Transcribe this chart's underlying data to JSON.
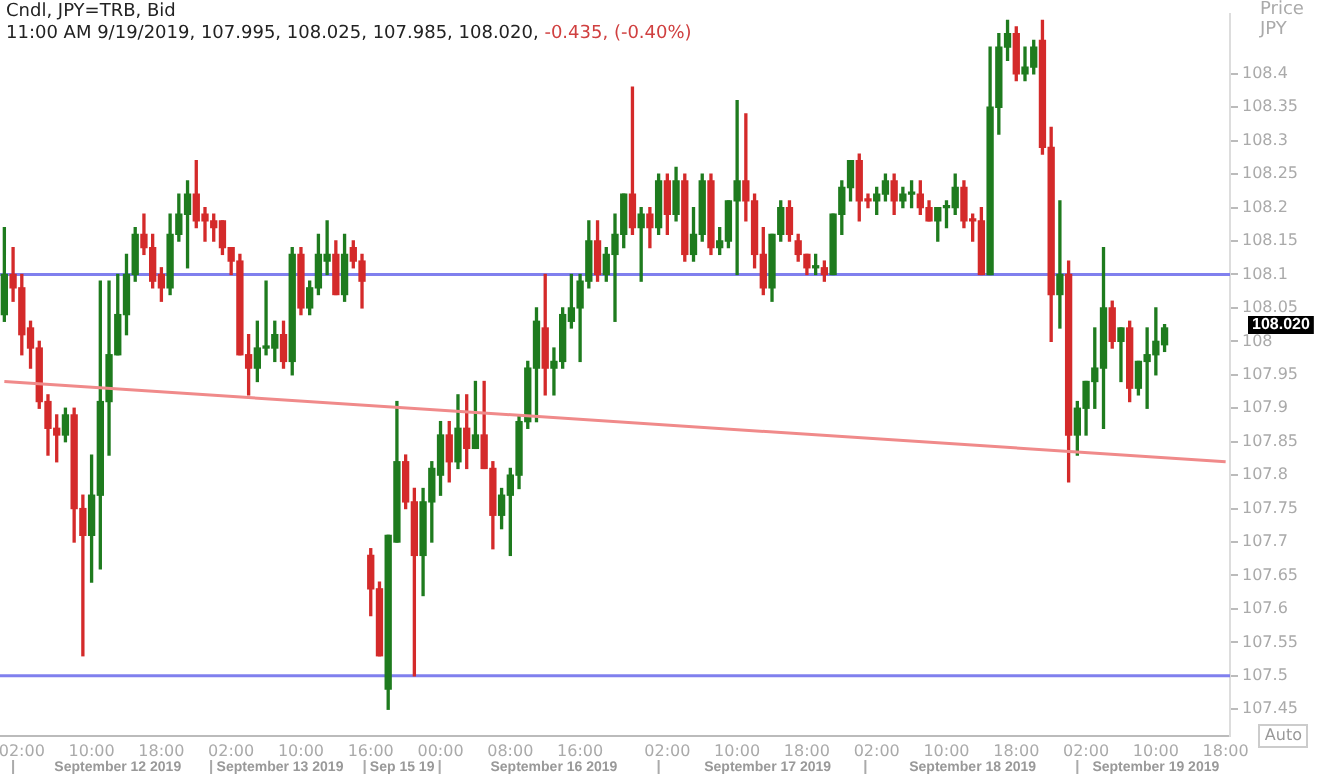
{
  "chart_data": {
    "type": "candlestick",
    "title": "Cndl, JPY=TRB, Bid",
    "subtitle": "11:00 AM 9/19/2019, 107.995, 108.025, 107.985, 108.020, -0.435, (-0.40%)",
    "ylabel": "Price JPY",
    "categories": [
      null,
      null,
      "02:00",
      null,
      null,
      null,
      null,
      null,
      null,
      null,
      "10:00",
      null,
      null,
      null,
      null,
      null,
      null,
      null,
      "18:00",
      null,
      null,
      null,
      null,
      null,
      null,
      null,
      "02:00",
      null,
      null,
      null,
      null,
      null,
      null,
      null,
      "10:00",
      null,
      null,
      null,
      null,
      null,
      null,
      null,
      "16:00",
      null,
      null,
      null,
      null,
      null,
      null,
      null,
      "00:00",
      null,
      null,
      null,
      null,
      null,
      null,
      null,
      "08:00",
      null,
      null,
      null,
      null,
      null,
      null,
      null,
      "16:00",
      null,
      null,
      null,
      null,
      null,
      null,
      null,
      null,
      null,
      "02:00",
      null,
      null,
      null,
      null,
      null,
      null,
      null,
      "10:00",
      null,
      null,
      null,
      null,
      null,
      null,
      null,
      "18:00",
      null,
      null,
      null,
      null,
      null,
      null,
      null,
      "02:00",
      null,
      null,
      null,
      null,
      null,
      null,
      null,
      "10:00",
      null,
      null,
      null,
      null,
      null,
      null,
      null,
      "18:00",
      null,
      null,
      null,
      null,
      null,
      null,
      null,
      "02:00",
      null,
      null,
      null,
      null,
      null,
      null,
      null,
      "10:00",
      null,
      null,
      null,
      null,
      null,
      null,
      null,
      "18:00"
    ],
    "ohlc": [
      [
        108.04,
        108.17,
        108.03,
        108.1
      ],
      [
        108.1,
        108.14,
        108.06,
        108.08
      ],
      [
        108.08,
        108.1,
        107.98,
        108.01
      ],
      [
        108.02,
        108.03,
        107.96,
        107.99
      ],
      [
        107.99,
        108.0,
        107.9,
        107.91
      ],
      [
        107.91,
        107.92,
        107.83,
        107.87
      ],
      [
        107.87,
        107.89,
        107.82,
        107.86
      ],
      [
        107.86,
        107.9,
        107.85,
        107.89
      ],
      [
        107.89,
        107.9,
        107.7,
        107.75
      ],
      [
        107.75,
        107.77,
        107.53,
        107.71
      ],
      [
        107.71,
        107.83,
        107.64,
        107.77
      ],
      [
        107.77,
        108.09,
        107.66,
        107.91
      ],
      [
        107.91,
        108.09,
        107.83,
        107.98
      ],
      [
        107.98,
        108.1,
        107.98,
        108.04
      ],
      [
        108.04,
        108.13,
        108.01,
        108.1
      ],
      [
        108.1,
        108.17,
        108.09,
        108.16
      ],
      [
        108.16,
        108.19,
        108.13,
        108.14
      ],
      [
        108.14,
        108.16,
        108.08,
        108.09
      ],
      [
        108.1,
        108.11,
        108.06,
        108.08
      ],
      [
        108.08,
        108.19,
        108.07,
        108.16
      ],
      [
        108.16,
        108.22,
        108.15,
        108.19
      ],
      [
        108.19,
        108.24,
        108.11,
        108.22
      ],
      [
        108.22,
        108.27,
        108.17,
        108.18
      ],
      [
        108.19,
        108.2,
        108.15,
        108.18
      ],
      [
        108.18,
        108.19,
        108.15,
        108.17
      ],
      [
        108.18,
        108.18,
        108.13,
        108.14
      ],
      [
        108.14,
        108.14,
        108.1,
        108.12
      ],
      [
        108.12,
        108.13,
        107.98,
        107.98
      ],
      [
        107.98,
        108.01,
        107.92,
        107.96
      ],
      [
        107.96,
        108.03,
        107.94,
        107.99
      ],
      [
        107.99,
        108.09,
        107.98,
        107.99
      ],
      [
        107.99,
        108.03,
        107.97,
        108.01
      ],
      [
        108.01,
        108.03,
        107.96,
        107.97
      ],
      [
        107.97,
        108.14,
        107.95,
        108.13
      ],
      [
        108.13,
        108.14,
        108.04,
        108.05
      ],
      [
        108.05,
        108.09,
        108.04,
        108.08
      ],
      [
        108.08,
        108.16,
        108.07,
        108.13
      ],
      [
        108.12,
        108.18,
        108.1,
        108.13
      ],
      [
        108.13,
        108.15,
        108.07,
        108.07
      ],
      [
        108.07,
        108.16,
        108.06,
        108.13
      ],
      [
        108.14,
        108.15,
        108.11,
        108.12
      ],
      [
        108.12,
        108.13,
        108.05,
        108.09
      ],
      [
        107.68,
        107.69,
        107.59,
        107.63
      ],
      [
        107.63,
        107.64,
        107.53,
        107.53
      ],
      [
        107.48,
        107.71,
        107.45,
        107.71
      ],
      [
        107.7,
        107.91,
        107.7,
        107.82
      ],
      [
        107.82,
        107.83,
        107.75,
        107.76
      ],
      [
        107.76,
        107.78,
        107.5,
        107.68
      ],
      [
        107.68,
        107.78,
        107.62,
        107.76
      ],
      [
        107.76,
        107.82,
        107.7,
        107.81
      ],
      [
        107.8,
        107.88,
        107.77,
        107.86
      ],
      [
        107.86,
        107.88,
        107.79,
        107.82
      ],
      [
        107.82,
        107.92,
        107.81,
        107.87
      ],
      [
        107.87,
        107.92,
        107.81,
        107.84
      ],
      [
        107.84,
        107.94,
        107.84,
        107.86
      ],
      [
        107.86,
        107.94,
        107.81,
        107.81
      ],
      [
        107.81,
        107.82,
        107.69,
        107.74
      ],
      [
        107.74,
        107.78,
        107.72,
        107.77
      ],
      [
        107.77,
        107.81,
        107.68,
        107.8
      ],
      [
        107.8,
        107.89,
        107.78,
        107.88
      ],
      [
        107.88,
        107.97,
        107.87,
        107.96
      ],
      [
        107.96,
        108.05,
        107.88,
        108.03
      ],
      [
        108.02,
        108.1,
        107.92,
        107.96
      ],
      [
        107.96,
        107.99,
        107.92,
        107.97
      ],
      [
        107.97,
        108.05,
        107.96,
        108.04
      ],
      [
        108.03,
        108.1,
        108.02,
        108.05
      ],
      [
        108.05,
        108.1,
        107.97,
        108.09
      ],
      [
        108.09,
        108.18,
        108.08,
        108.15
      ],
      [
        108.15,
        108.18,
        108.09,
        108.1
      ],
      [
        108.1,
        108.14,
        108.09,
        108.13
      ],
      [
        108.13,
        108.19,
        108.03,
        108.16
      ],
      [
        108.16,
        108.22,
        108.14,
        108.22
      ],
      [
        108.22,
        108.38,
        108.16,
        108.17
      ],
      [
        108.17,
        108.2,
        108.09,
        108.19
      ],
      [
        108.19,
        108.2,
        108.14,
        108.17
      ],
      [
        108.17,
        108.25,
        108.16,
        108.24
      ],
      [
        108.24,
        108.25,
        108.16,
        108.19
      ],
      [
        108.19,
        108.26,
        108.18,
        108.24
      ],
      [
        108.24,
        108.25,
        108.12,
        108.13
      ],
      [
        108.13,
        108.2,
        108.12,
        108.16
      ],
      [
        108.16,
        108.25,
        108.15,
        108.24
      ],
      [
        108.24,
        108.25,
        108.13,
        108.14
      ],
      [
        108.14,
        108.17,
        108.13,
        108.15
      ],
      [
        108.15,
        108.21,
        108.14,
        108.21
      ],
      [
        108.21,
        108.36,
        108.1,
        108.24
      ],
      [
        108.24,
        108.34,
        108.18,
        108.21
      ],
      [
        108.21,
        108.22,
        108.11,
        108.13
      ],
      [
        108.13,
        108.17,
        108.07,
        108.08
      ],
      [
        108.08,
        108.16,
        108.06,
        108.16
      ],
      [
        108.16,
        108.21,
        108.15,
        108.2
      ],
      [
        108.2,
        108.21,
        108.15,
        108.16
      ],
      [
        108.15,
        108.16,
        108.12,
        108.13
      ],
      [
        108.13,
        108.13,
        108.1,
        108.11
      ],
      [
        108.11,
        108.13,
        108.1,
        108.11
      ],
      [
        108.11,
        108.12,
        108.09,
        108.1
      ],
      [
        108.1,
        108.19,
        108.1,
        108.19
      ],
      [
        108.19,
        108.24,
        108.16,
        108.23
      ],
      [
        108.23,
        108.27,
        108.21,
        108.27
      ],
      [
        108.27,
        108.28,
        108.18,
        108.21
      ],
      [
        108.21,
        108.22,
        108.2,
        108.21
      ],
      [
        108.21,
        108.23,
        108.19,
        108.22
      ],
      [
        108.22,
        108.25,
        108.21,
        108.24
      ],
      [
        108.24,
        108.25,
        108.19,
        108.21
      ],
      [
        108.21,
        108.23,
        108.2,
        108.22
      ],
      [
        108.22,
        108.24,
        108.2,
        108.22
      ],
      [
        108.22,
        108.24,
        108.19,
        108.2
      ],
      [
        108.2,
        108.21,
        108.18,
        108.18
      ],
      [
        108.18,
        108.2,
        108.15,
        108.2
      ],
      [
        108.2,
        108.21,
        108.17,
        108.2
      ],
      [
        108.2,
        108.25,
        108.19,
        108.23
      ],
      [
        108.23,
        108.24,
        108.17,
        108.18
      ],
      [
        108.18,
        108.19,
        108.15,
        108.18
      ],
      [
        108.18,
        108.2,
        108.1,
        108.1
      ],
      [
        108.1,
        108.44,
        108.1,
        108.35
      ],
      [
        108.35,
        108.46,
        108.31,
        108.44
      ],
      [
        108.44,
        108.48,
        108.42,
        108.46
      ],
      [
        108.46,
        108.47,
        108.39,
        108.4
      ],
      [
        108.4,
        108.44,
        108.39,
        108.41
      ],
      [
        108.41,
        108.45,
        108.4,
        108.44
      ],
      [
        108.45,
        108.48,
        108.28,
        108.29
      ],
      [
        108.29,
        108.32,
        108.0,
        108.07
      ],
      [
        108.07,
        108.21,
        108.02,
        108.1
      ],
      [
        108.1,
        108.12,
        107.79,
        107.86
      ],
      [
        107.86,
        107.91,
        107.83,
        107.9
      ],
      [
        107.9,
        107.94,
        107.86,
        107.94
      ],
      [
        107.94,
        108.02,
        107.9,
        107.96
      ],
      [
        107.96,
        108.14,
        107.87,
        108.05
      ],
      [
        108.05,
        108.06,
        107.99,
        108.0
      ],
      [
        108.0,
        108.02,
        107.94,
        108.02
      ],
      [
        108.02,
        108.03,
        107.91,
        107.93
      ],
      [
        107.93,
        107.97,
        107.92,
        107.97
      ],
      [
        107.97,
        108.02,
        107.9,
        107.98
      ],
      [
        107.98,
        108.05,
        107.95,
        108.0
      ],
      [
        107.995,
        108.025,
        107.985,
        108.02
      ],
      null,
      null,
      null,
      null,
      null,
      null,
      null
    ],
    "colors": [
      "#1e7b1e",
      "#d42a2a",
      "#d42a2a",
      "#d42a2a",
      "#d42a2a",
      "#d42a2a",
      "#d42a2a",
      "#1e7b1e",
      "#d42a2a",
      "#d42a2a",
      "#1e7b1e",
      "#1e7b1e",
      "#1e7b1e",
      "#1e7b1e",
      "#1e7b1e",
      "#1e7b1e",
      "#d42a2a",
      "#d42a2a",
      "#d42a2a",
      "#1e7b1e",
      "#1e7b1e",
      "#1e7b1e",
      "#d42a2a",
      "#d42a2a",
      "#d42a2a",
      "#d42a2a",
      "#d42a2a",
      "#d42a2a",
      "#d42a2a",
      "#1e7b1e",
      "#1e7b1e",
      "#1e7b1e",
      "#d42a2a",
      "#1e7b1e",
      "#d42a2a",
      "#1e7b1e",
      "#1e7b1e",
      "#1e7b1e",
      "#d42a2a",
      "#1e7b1e",
      "#d42a2a",
      "#d42a2a",
      "#d42a2a",
      "#d42a2a",
      "#1e7b1e",
      "#1e7b1e",
      "#d42a2a",
      "#d42a2a",
      "#1e7b1e",
      "#1e7b1e",
      "#1e7b1e",
      "#d42a2a",
      "#1e7b1e",
      "#d42a2a",
      "#1e7b1e",
      "#d42a2a",
      "#d42a2a",
      "#1e7b1e",
      "#1e7b1e",
      "#1e7b1e",
      "#1e7b1e",
      "#1e7b1e",
      "#d42a2a",
      "#1e7b1e",
      "#1e7b1e",
      "#1e7b1e",
      "#1e7b1e",
      "#1e7b1e",
      "#d42a2a",
      "#1e7b1e",
      "#1e7b1e",
      "#1e7b1e",
      "#d42a2a",
      "#1e7b1e",
      "#d42a2a",
      "#1e7b1e",
      "#d42a2a",
      "#1e7b1e",
      "#d42a2a",
      "#1e7b1e",
      "#1e7b1e",
      "#d42a2a",
      "#1e7b1e",
      "#1e7b1e",
      "#1e7b1e",
      "#d42a2a",
      "#d42a2a",
      "#d42a2a",
      "#1e7b1e",
      "#1e7b1e",
      "#d42a2a",
      "#d42a2a",
      "#d42a2a",
      "#1e7b1e",
      "#d42a2a",
      "#1e7b1e",
      "#1e7b1e",
      "#1e7b1e",
      "#d42a2a",
      "#d42a2a",
      "#1e7b1e",
      "#1e7b1e",
      "#d42a2a",
      "#1e7b1e",
      "#1e7b1e",
      "#d42a2a",
      "#d42a2a",
      "#1e7b1e",
      "#1e7b1e",
      "#1e7b1e",
      "#d42a2a",
      "#d42a2a",
      "#d42a2a",
      "#1e7b1e",
      "#1e7b1e",
      "#1e7b1e",
      "#d42a2a",
      "#1e7b1e",
      "#1e7b1e",
      "#d42a2a",
      "#d42a2a",
      "#1e7b1e",
      "#d42a2a",
      "#1e7b1e",
      "#1e7b1e",
      "#1e7b1e",
      "#1e7b1e",
      "#d42a2a",
      "#1e7b1e",
      "#d42a2a",
      "#1e7b1e",
      "#1e7b1e",
      "#1e7b1e",
      "#1e7b1e",
      null,
      null,
      null,
      null,
      null,
      null,
      null
    ],
    "series": [
      {
        "type": "line",
        "color": "#f08a8a",
        "values": [
          107.94,
          null,
          null,
          null,
          null,
          null,
          null,
          null,
          null,
          null,
          null,
          null,
          null,
          null,
          null,
          null,
          null,
          null,
          null,
          null,
          null,
          null,
          null,
          null,
          null,
          null,
          null,
          null,
          null,
          null,
          null,
          null,
          null,
          null,
          null,
          null,
          null,
          null,
          null,
          null,
          null,
          null,
          null,
          null,
          null,
          null,
          null,
          null,
          null,
          null,
          null,
          null,
          null,
          null,
          null,
          null,
          null,
          null,
          null,
          null,
          null,
          null,
          null,
          null,
          null,
          null,
          null,
          null,
          null,
          null,
          null,
          null,
          null,
          null,
          null,
          null,
          null,
          null,
          null,
          null,
          null,
          null,
          null,
          null,
          null,
          null,
          null,
          null,
          null,
          null,
          null,
          null,
          null,
          null,
          null,
          null,
          null,
          null,
          null,
          null,
          null,
          null,
          null,
          null,
          null,
          null,
          null,
          null,
          null,
          null,
          null,
          null,
          null,
          null,
          null,
          null,
          null,
          null,
          null,
          null,
          null,
          null,
          null,
          null,
          null,
          null,
          null,
          null,
          null,
          null,
          null,
          null,
          null,
          null,
          null,
          null,
          null,
          null,
          null,
          null,
          107.82
        ]
      }
    ],
    "ylim": [
      107.41,
      108.49
    ],
    "yticks": [
      107.45,
      107.5,
      107.55,
      107.6,
      107.65,
      107.7,
      107.75,
      107.8,
      107.85,
      107.9,
      107.95,
      108,
      108.05,
      108.1,
      108.15,
      108.2,
      108.25,
      108.3,
      108.35,
      108.4
    ],
    "ref_lines": [
      {
        "axis": "y",
        "value": 108.1,
        "color": "#8080ee"
      },
      {
        "axis": "y",
        "value": 107.5,
        "color": "#8080ee"
      }
    ],
    "annotations": [
      "September 12 2019",
      "September 13 2019",
      "Sep 15 19",
      "September 16 2019",
      "September 17 2019",
      "September 18 2019",
      "September 19 2019",
      "108.020",
      "Auto"
    ]
  }
}
